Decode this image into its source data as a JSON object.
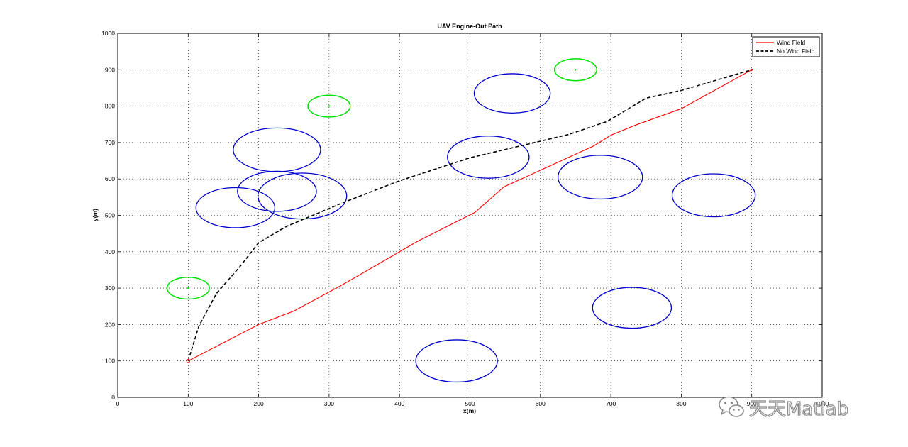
{
  "chart_data": {
    "type": "line",
    "title": "UAV Engine-Out Path",
    "xlabel": "x(m)",
    "ylabel": "y(m)",
    "xlim": [
      0,
      1000
    ],
    "ylim": [
      0,
      1000
    ],
    "xticks": [
      0,
      100,
      200,
      300,
      400,
      500,
      600,
      700,
      800,
      900,
      1000
    ],
    "yticks": [
      0,
      100,
      200,
      300,
      400,
      500,
      600,
      700,
      800,
      900,
      1000
    ],
    "grid": true,
    "legend_position": "top-right",
    "series": [
      {
        "name": "Wind Field",
        "color": "#ff0000",
        "style": "solid",
        "points": [
          [
            100,
            100
          ],
          [
            200,
            200
          ],
          [
            250,
            237
          ],
          [
            315,
            305
          ],
          [
            360,
            355
          ],
          [
            425,
            428
          ],
          [
            507,
            508
          ],
          [
            548,
            578
          ],
          [
            650,
            668
          ],
          [
            675,
            690
          ],
          [
            700,
            720
          ],
          [
            735,
            748
          ],
          [
            800,
            793
          ],
          [
            900,
            900
          ]
        ]
      },
      {
        "name": "No Wind Field",
        "color": "#000000",
        "style": "dashed",
        "points": [
          [
            100,
            100
          ],
          [
            115,
            195
          ],
          [
            140,
            285
          ],
          [
            173,
            358
          ],
          [
            200,
            425
          ],
          [
            240,
            470
          ],
          [
            320,
            535
          ],
          [
            400,
            595
          ],
          [
            500,
            658
          ],
          [
            640,
            722
          ],
          [
            695,
            758
          ],
          [
            750,
            822
          ],
          [
            800,
            843
          ],
          [
            900,
            900
          ]
        ]
      }
    ],
    "obstacles": [
      {
        "cx": 167,
        "cy": 521,
        "rx": 56,
        "ry": 55
      },
      {
        "cx": 226,
        "cy": 566,
        "rx": 56,
        "ry": 55
      },
      {
        "cx": 226,
        "cy": 680,
        "rx": 62,
        "ry": 60
      },
      {
        "cx": 262,
        "cy": 553,
        "rx": 63,
        "ry": 63
      },
      {
        "cx": 481,
        "cy": 100,
        "rx": 58,
        "ry": 58
      },
      {
        "cx": 526,
        "cy": 660,
        "rx": 58,
        "ry": 58
      },
      {
        "cx": 560,
        "cy": 835,
        "rx": 54,
        "ry": 54
      },
      {
        "cx": 685,
        "cy": 605,
        "rx": 60,
        "ry": 60
      },
      {
        "cx": 730,
        "cy": 246,
        "rx": 56,
        "ry": 56
      },
      {
        "cx": 846,
        "cy": 555,
        "rx": 59,
        "ry": 59
      }
    ],
    "targets": [
      {
        "cx": 100,
        "cy": 300,
        "rx": 30,
        "ry": 30
      },
      {
        "cx": 300,
        "cy": 800,
        "rx": 30,
        "ry": 30
      },
      {
        "cx": 650,
        "cy": 900,
        "rx": 30,
        "ry": 30
      }
    ],
    "start_point": {
      "x": 100,
      "y": 100
    },
    "end_point": {
      "x": 900,
      "y": 900
    },
    "colors": {
      "obstacle": "#0000cc",
      "target": "#00e000",
      "grid": "#000000"
    }
  },
  "watermark": {
    "text": "天天Matlab",
    "icon": "wechat-icon"
  }
}
